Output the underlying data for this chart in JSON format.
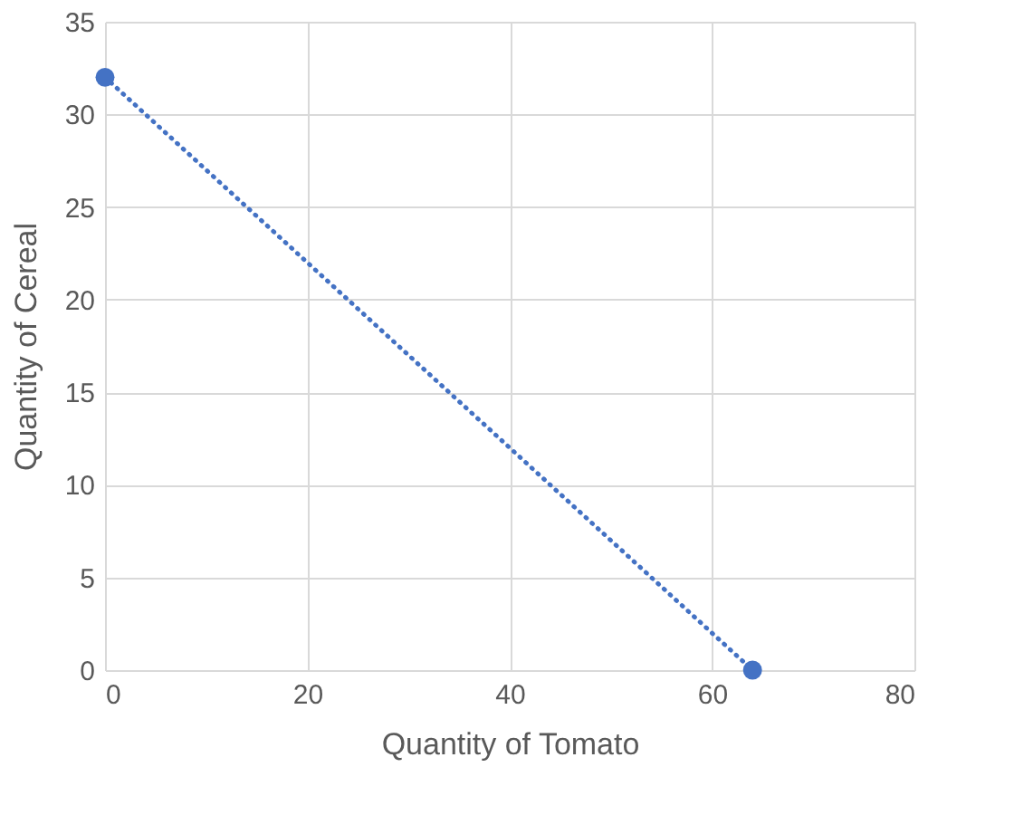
{
  "chart_data": {
    "type": "line",
    "xlabel": "Quantity of Tomato",
    "ylabel": "Quantity of Cereal",
    "x": [
      0,
      64
    ],
    "series": [
      {
        "color": "#4472c4",
        "values": [
          32,
          0
        ]
      }
    ],
    "xlim": [
      0,
      80
    ],
    "xticks": [
      0,
      20,
      40,
      60,
      80
    ],
    "ylim": [
      0,
      35
    ],
    "yticks": [
      0,
      5,
      10,
      15,
      20,
      25,
      30,
      35
    ],
    "grid": true,
    "marker": "circle",
    "line_style": "dotted"
  }
}
